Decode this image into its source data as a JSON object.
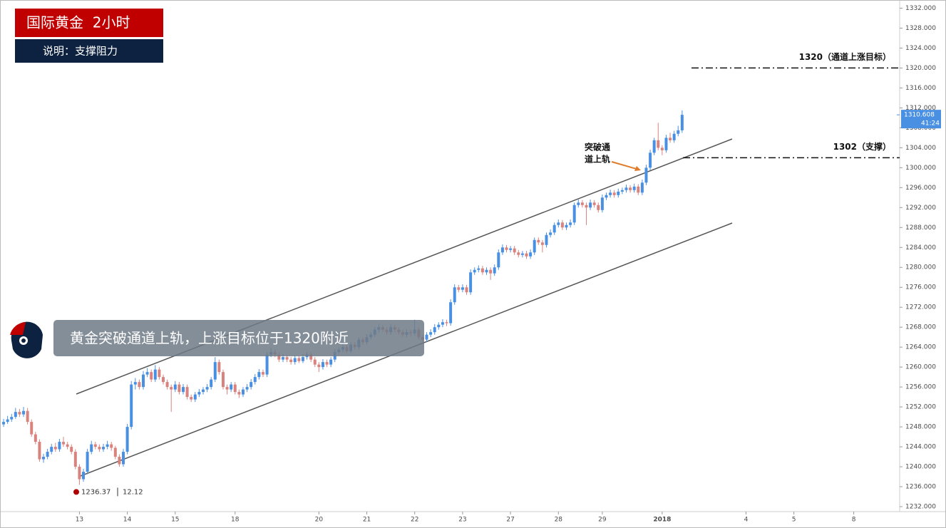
{
  "header": {
    "title": "国际黄金  2小时",
    "subtitle": "说明：支撑阻力"
  },
  "banner": "黄金突破通道上轨，上涨目标位于1320附近",
  "chart_data": {
    "type": "candlestick",
    "up_color": "#4a90e2",
    "down_color": "#d9837f",
    "xlim": [
      -0.9,
      224.5
    ],
    "ylim": [
      1231,
      1333.5
    ],
    "xticks": [
      {
        "value": 19,
        "label": "13"
      },
      {
        "value": 31,
        "label": "14"
      },
      {
        "value": 43,
        "label": "15"
      },
      {
        "value": 58,
        "label": "18"
      },
      {
        "value": 79,
        "label": "20"
      },
      {
        "value": 91,
        "label": "21"
      },
      {
        "value": 103,
        "label": "22"
      },
      {
        "value": 115,
        "label": "23"
      },
      {
        "value": 127,
        "label": "27"
      },
      {
        "value": 139,
        "label": "28"
      },
      {
        "value": 150,
        "label": "29"
      },
      {
        "value": 165,
        "label": "2018"
      },
      {
        "value": 186,
        "label": "4"
      },
      {
        "value": 198,
        "label": "5"
      },
      {
        "value": 213,
        "label": "8"
      }
    ],
    "yticks": [
      {
        "value": 1232,
        "label": "1232.000"
      },
      {
        "value": 1236,
        "label": "1236.000"
      },
      {
        "value": 1240,
        "label": "1240.000"
      },
      {
        "value": 1244,
        "label": "1244.000"
      },
      {
        "value": 1248,
        "label": "1248.000"
      },
      {
        "value": 1252,
        "label": "1252.000"
      },
      {
        "value": 1256,
        "label": "1256.000"
      },
      {
        "value": 1260,
        "label": "1260.000"
      },
      {
        "value": 1264,
        "label": "1264.000"
      },
      {
        "value": 1268,
        "label": "1268.000"
      },
      {
        "value": 1272,
        "label": "1272.000"
      },
      {
        "value": 1276,
        "label": "1276.000"
      },
      {
        "value": 1280,
        "label": "1280.000"
      },
      {
        "value": 1284,
        "label": "1284.000"
      },
      {
        "value": 1288,
        "label": "1288.000"
      },
      {
        "value": 1292,
        "label": "1292.000"
      },
      {
        "value": 1296,
        "label": "1296.000"
      },
      {
        "value": 1300,
        "label": "1300.000"
      },
      {
        "value": 1304,
        "label": "1304.000"
      },
      {
        "value": 1308,
        "label": "1308.000"
      },
      {
        "value": 1312,
        "label": "1312.000"
      },
      {
        "value": 1316,
        "label": "1316.000"
      },
      {
        "value": 1320,
        "label": "1320.000"
      },
      {
        "value": 1324,
        "label": "1324.000"
      },
      {
        "value": 1328,
        "label": "1328.000"
      },
      {
        "value": 1332,
        "label": "1332.000"
      }
    ],
    "last_price": {
      "value": 1310.608,
      "label": "1310.608"
    },
    "countdown": "41:24",
    "low_marker": {
      "value": 1236.37,
      "change": 12.12
    },
    "levels": [
      {
        "value": 1320,
        "label": "1320（通道上涨目标）"
      },
      {
        "value": 1302,
        "label": "1302（支撑）"
      }
    ],
    "annotation": [
      "突破通",
      "道上轨"
    ],
    "candles": [
      [
        1248.5,
        1249.6,
        1248,
        1249
      ],
      [
        1249,
        1250.2,
        1248.6,
        1249.5
      ],
      [
        1249.5,
        1250.6,
        1249,
        1250
      ],
      [
        1250,
        1251.8,
        1249.6,
        1251
      ],
      [
        1251,
        1251.6,
        1250,
        1250.5
      ],
      [
        1250.5,
        1252,
        1250,
        1251.2
      ],
      [
        1251.2,
        1251.8,
        1248.5,
        1249
      ],
      [
        1249,
        1249.5,
        1246,
        1246.5
      ],
      [
        1246.5,
        1247,
        1244.5,
        1245
      ],
      [
        1245,
        1245.5,
        1241,
        1241.5
      ],
      [
        1241.5,
        1242.6,
        1240.8,
        1242
      ],
      [
        1242,
        1243.6,
        1241.5,
        1243
      ],
      [
        1243,
        1244.6,
        1242.5,
        1244
      ],
      [
        1244,
        1244.8,
        1243,
        1243.5
      ],
      [
        1243.5,
        1245.6,
        1243,
        1245
      ],
      [
        1245,
        1246,
        1244,
        1244.5
      ],
      [
        1244.5,
        1245,
        1243.5,
        1244
      ],
      [
        1244,
        1244.5,
        1242.5,
        1243
      ],
      [
        1243,
        1243.5,
        1239.5,
        1240
      ],
      [
        1240,
        1240.5,
        1236.37,
        1237.5
      ],
      [
        1237.5,
        1239.6,
        1237,
        1239
      ],
      [
        1239,
        1243.6,
        1238.5,
        1243
      ],
      [
        1243,
        1245.2,
        1242.5,
        1244.5
      ],
      [
        1244.5,
        1245,
        1243.5,
        1244
      ],
      [
        1244,
        1244.5,
        1243,
        1243.5
      ],
      [
        1243.5,
        1244.6,
        1243,
        1244
      ],
      [
        1244,
        1245.2,
        1243.5,
        1244.5
      ],
      [
        1244.5,
        1245,
        1243.2,
        1243.8
      ],
      [
        1243.8,
        1244.2,
        1241.5,
        1242
      ],
      [
        1242,
        1242.5,
        1240,
        1240.5
      ],
      [
        1240.5,
        1243.6,
        1240,
        1243
      ],
      [
        1243,
        1248.6,
        1242.5,
        1248
      ],
      [
        1248,
        1257.2,
        1247.5,
        1256.5
      ],
      [
        1256.5,
        1257.8,
        1255.5,
        1257
      ],
      [
        1257,
        1257.5,
        1255.5,
        1256
      ],
      [
        1256,
        1259.2,
        1255.5,
        1258.5
      ],
      [
        1258.5,
        1259.8,
        1258,
        1259
      ],
      [
        1259,
        1259.5,
        1257,
        1257.5
      ],
      [
        1257.5,
        1260.4,
        1257,
        1259.5
      ],
      [
        1259.5,
        1260,
        1257.5,
        1258
      ],
      [
        1258,
        1258.5,
        1256.5,
        1257
      ],
      [
        1257,
        1257.5,
        1255.5,
        1256
      ],
      [
        1256,
        1256.5,
        1251,
        1255.5
      ],
      [
        1255.5,
        1257.2,
        1255,
        1256.5
      ],
      [
        1256.5,
        1257,
        1254.5,
        1255
      ],
      [
        1255,
        1256.6,
        1254.5,
        1256
      ],
      [
        1256,
        1256.5,
        1253.5,
        1254
      ],
      [
        1254,
        1254.5,
        1253,
        1253.5
      ],
      [
        1253.5,
        1255,
        1253,
        1254.5
      ],
      [
        1254.5,
        1255.6,
        1254,
        1255
      ],
      [
        1255,
        1256,
        1254.5,
        1255.5
      ],
      [
        1255.5,
        1256.6,
        1255,
        1256
      ],
      [
        1256,
        1258,
        1255.5,
        1257.5
      ],
      [
        1257.5,
        1262,
        1257,
        1261
      ],
      [
        1261,
        1261.5,
        1258.5,
        1259
      ],
      [
        1259,
        1259.5,
        1255.5,
        1256
      ],
      [
        1256,
        1256.5,
        1254.5,
        1255.5
      ],
      [
        1255.5,
        1257,
        1255,
        1256.5
      ],
      [
        1256.5,
        1257,
        1254.5,
        1255
      ],
      [
        1255,
        1255.5,
        1253.8,
        1254.5
      ],
      [
        1254.5,
        1256,
        1254,
        1255.5
      ],
      [
        1255.5,
        1256.6,
        1255,
        1256
      ],
      [
        1256,
        1257.6,
        1255.5,
        1257
      ],
      [
        1257,
        1258.6,
        1256.5,
        1258
      ],
      [
        1258,
        1259.6,
        1257.5,
        1259
      ],
      [
        1259,
        1259.5,
        1258,
        1258.5
      ],
      [
        1258.5,
        1263,
        1258,
        1262.5
      ],
      [
        1262.5,
        1263.8,
        1262,
        1263
      ],
      [
        1263,
        1263.5,
        1262,
        1262.5
      ],
      [
        1262.5,
        1263,
        1261,
        1261.5
      ],
      [
        1261.5,
        1262.6,
        1261,
        1262
      ],
      [
        1262,
        1262.5,
        1261,
        1261.5
      ],
      [
        1261.5,
        1262,
        1260.5,
        1261
      ],
      [
        1261,
        1262.4,
        1260.5,
        1261.8
      ],
      [
        1261.8,
        1262.2,
        1260.8,
        1261.2
      ],
      [
        1261.2,
        1262.6,
        1260.8,
        1262
      ],
      [
        1262,
        1263,
        1261.5,
        1262.5
      ],
      [
        1262.5,
        1263,
        1261,
        1261.5
      ],
      [
        1261.5,
        1262,
        1260,
        1260.5
      ],
      [
        1260.5,
        1261,
        1259,
        1260
      ],
      [
        1260,
        1261.6,
        1259.5,
        1261
      ],
      [
        1261,
        1261.5,
        1260,
        1260.5
      ],
      [
        1260.5,
        1262,
        1260,
        1261.5
      ],
      [
        1261.5,
        1263.6,
        1261,
        1263
      ],
      [
        1263,
        1264,
        1262.5,
        1263.5
      ],
      [
        1263.5,
        1264.6,
        1263,
        1264
      ],
      [
        1264,
        1264.5,
        1262.8,
        1263.2
      ],
      [
        1263.2,
        1265,
        1262.8,
        1264.5
      ],
      [
        1264.5,
        1265,
        1263.5,
        1264
      ],
      [
        1264,
        1266,
        1263.5,
        1265.5
      ],
      [
        1265.5,
        1266,
        1264.5,
        1265
      ],
      [
        1265,
        1266.6,
        1264.5,
        1266
      ],
      [
        1266,
        1267,
        1265.5,
        1266.5
      ],
      [
        1266.5,
        1268,
        1266,
        1267.5
      ],
      [
        1267.5,
        1268.6,
        1267,
        1268
      ],
      [
        1268,
        1268.5,
        1267,
        1267.5
      ],
      [
        1267.5,
        1268,
        1266.5,
        1267
      ],
      [
        1267,
        1268.6,
        1266.5,
        1268
      ],
      [
        1268,
        1268.5,
        1267,
        1267.5
      ],
      [
        1267.5,
        1268,
        1266.5,
        1267
      ],
      [
        1267,
        1267.5,
        1266,
        1266.5
      ],
      [
        1266.5,
        1267.6,
        1266,
        1267
      ],
      [
        1267,
        1267.5,
        1266.2,
        1266.8
      ],
      [
        1266.8,
        1269.5,
        1266.3,
        1267.5
      ],
      [
        1267.5,
        1268,
        1265.5,
        1266
      ],
      [
        1266,
        1266.5,
        1265,
        1265.5
      ],
      [
        1265.5,
        1267,
        1265,
        1266.5
      ],
      [
        1266.5,
        1267.6,
        1266,
        1267
      ],
      [
        1267,
        1268.6,
        1266.5,
        1268
      ],
      [
        1268,
        1269,
        1267.5,
        1268.5
      ],
      [
        1268.5,
        1269.6,
        1268,
        1269
      ],
      [
        1269,
        1269.5,
        1268.2,
        1268.8
      ],
      [
        1268.8,
        1273.6,
        1268.3,
        1273
      ],
      [
        1273,
        1276.6,
        1272.5,
        1276
      ],
      [
        1276,
        1276.5,
        1275,
        1275.5
      ],
      [
        1275.5,
        1276.6,
        1275,
        1276
      ],
      [
        1276,
        1276.5,
        1274.5,
        1275
      ],
      [
        1275,
        1279.6,
        1274.5,
        1279
      ],
      [
        1279,
        1280,
        1278.5,
        1279.5
      ],
      [
        1279.5,
        1280.4,
        1279,
        1279.8
      ],
      [
        1279.8,
        1280.3,
        1278.5,
        1279
      ],
      [
        1279,
        1280,
        1278.5,
        1279.5
      ],
      [
        1279.5,
        1280,
        1277.5,
        1278.8
      ],
      [
        1278.8,
        1280.6,
        1278.3,
        1280
      ],
      [
        1280,
        1283.6,
        1279.5,
        1283
      ],
      [
        1283,
        1284.6,
        1282.5,
        1284
      ],
      [
        1284,
        1284.5,
        1283,
        1283.5
      ],
      [
        1283.5,
        1284.3,
        1283,
        1283.8
      ],
      [
        1283.8,
        1284.3,
        1282.5,
        1283
      ],
      [
        1283,
        1283.5,
        1282,
        1282.5
      ],
      [
        1282.5,
        1283.3,
        1282,
        1282.8
      ],
      [
        1282.8,
        1283.3,
        1281.7,
        1282.2
      ],
      [
        1282.2,
        1283.6,
        1281.7,
        1283
      ],
      [
        1283,
        1286,
        1282.5,
        1285.5
      ],
      [
        1285.5,
        1286,
        1284.5,
        1285
      ],
      [
        1285,
        1285.5,
        1283,
        1284.5
      ],
      [
        1284.5,
        1287,
        1284,
        1286.5
      ],
      [
        1286.5,
        1287.6,
        1286,
        1287
      ],
      [
        1287,
        1289,
        1286.5,
        1288.5
      ],
      [
        1288.5,
        1289.6,
        1288,
        1289
      ],
      [
        1289,
        1289.5,
        1287.5,
        1288
      ],
      [
        1288,
        1289,
        1287.5,
        1288.5
      ],
      [
        1288.5,
        1289.6,
        1288,
        1289
      ],
      [
        1289,
        1293,
        1288.5,
        1292.5
      ],
      [
        1292.5,
        1293.6,
        1292,
        1293
      ],
      [
        1293,
        1293.5,
        1292,
        1292.5
      ],
      [
        1292.5,
        1293,
        1288.5,
        1292
      ],
      [
        1292,
        1293.6,
        1291.5,
        1293
      ],
      [
        1293,
        1293.5,
        1292,
        1292.5
      ],
      [
        1292.5,
        1293,
        1291,
        1291.5
      ],
      [
        1291.5,
        1294.6,
        1291,
        1294
      ],
      [
        1294,
        1295,
        1293.5,
        1294.5
      ],
      [
        1294.5,
        1295.6,
        1294,
        1295
      ],
      [
        1295,
        1295.5,
        1294,
        1294.5
      ],
      [
        1294.5,
        1295.8,
        1294,
        1295.2
      ],
      [
        1295.2,
        1296,
        1294.7,
        1295.5
      ],
      [
        1295.5,
        1296.6,
        1295,
        1296
      ],
      [
        1296,
        1296.5,
        1295,
        1295.5
      ],
      [
        1295.5,
        1296.8,
        1295,
        1296.2
      ],
      [
        1296.2,
        1296.7,
        1294.5,
        1295
      ],
      [
        1295,
        1297.6,
        1294.5,
        1297
      ],
      [
        1297,
        1300.6,
        1296.5,
        1300
      ],
      [
        1300,
        1303.6,
        1299.5,
        1303
      ],
      [
        1303,
        1306,
        1302.5,
        1305.5
      ],
      [
        1305.5,
        1309,
        1303.5,
        1304
      ],
      [
        1304,
        1304.5,
        1302.5,
        1303.5
      ],
      [
        1303.5,
        1306.6,
        1303,
        1306
      ],
      [
        1306,
        1307,
        1305,
        1305.5
      ],
      [
        1305.5,
        1307.4,
        1305,
        1306.8
      ],
      [
        1306.8,
        1308.4,
        1306.3,
        1307.5
      ],
      [
        1307.5,
        1311.5,
        1307,
        1310.608
      ]
    ]
  }
}
